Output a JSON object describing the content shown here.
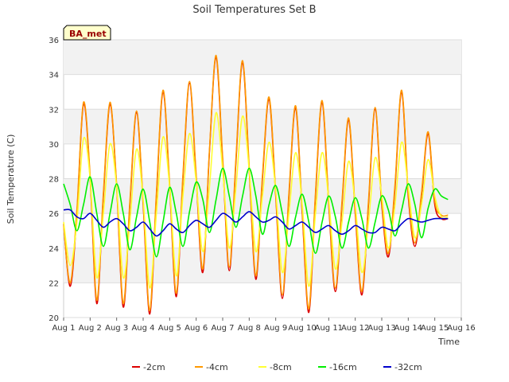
{
  "chart_data": {
    "type": "line",
    "title": "Soil Temperatures Set B",
    "xlabel": "Time",
    "ylabel": "Soil Temperature (C)",
    "ylim": [
      20,
      36
    ],
    "xlim": [
      0,
      15
    ],
    "x_tick_labels": [
      "Aug 1",
      "Aug 2",
      "Aug 3",
      "Aug 4",
      "Aug 5",
      "Aug 6",
      "Aug 7",
      "Aug 8",
      "Aug 9",
      "Aug 10",
      "Aug 11",
      "Aug 12",
      "Aug 13",
      "Aug 14",
      "Aug 15",
      "Aug 16"
    ],
    "y_ticks": [
      20,
      22,
      24,
      26,
      28,
      30,
      32,
      34,
      36
    ],
    "grid": true,
    "legend_position": "bottom",
    "station_label": "BA_met",
    "x_note": "x values in days since Aug 1 00:00",
    "series": [
      {
        "name": "-2cm",
        "color": "#dd0000",
        "x": [
          0.0,
          0.25,
          0.5,
          0.75,
          1.0,
          1.25,
          1.5,
          1.75,
          2.0,
          2.25,
          2.5,
          2.75,
          3.0,
          3.25,
          3.5,
          3.75,
          4.0,
          4.25,
          4.5,
          4.75,
          5.0,
          5.25,
          5.5,
          5.75,
          6.0,
          6.25,
          6.5,
          6.75,
          7.0,
          7.25,
          7.5,
          7.75,
          8.0,
          8.25,
          8.5,
          8.75,
          9.0,
          9.25,
          9.5,
          9.75,
          10.0,
          10.25,
          10.5,
          10.75,
          11.0,
          11.25,
          11.5,
          11.75,
          12.0,
          12.25,
          12.5,
          12.75,
          13.0,
          13.25,
          13.5,
          13.75,
          14.0,
          14.25,
          14.5
        ],
        "y": [
          25.4,
          21.8,
          26.0,
          32.3,
          28.0,
          20.8,
          27.0,
          32.3,
          27.5,
          20.6,
          26.5,
          31.8,
          26.5,
          20.2,
          27.0,
          33.0,
          27.5,
          21.2,
          28.0,
          33.5,
          28.0,
          22.6,
          29.5,
          35.0,
          29.0,
          22.7,
          29.0,
          34.7,
          28.5,
          22.2,
          28.0,
          32.6,
          27.0,
          21.1,
          27.0,
          32.1,
          26.0,
          20.3,
          27.0,
          32.4,
          26.5,
          21.5,
          26.5,
          31.4,
          26.0,
          21.3,
          26.5,
          32.0,
          26.5,
          23.5,
          27.5,
          33.0,
          27.0,
          24.1,
          27.0,
          30.6,
          26.5,
          25.7,
          25.7
        ]
      },
      {
        "name": "-4cm",
        "color": "#ff9900",
        "x": [
          0.0,
          0.25,
          0.5,
          0.75,
          1.0,
          1.25,
          1.5,
          1.75,
          2.0,
          2.25,
          2.5,
          2.75,
          3.0,
          3.25,
          3.5,
          3.75,
          4.0,
          4.25,
          4.5,
          4.75,
          5.0,
          5.25,
          5.5,
          5.75,
          6.0,
          6.25,
          6.5,
          6.75,
          7.0,
          7.25,
          7.5,
          7.75,
          8.0,
          8.25,
          8.5,
          8.75,
          9.0,
          9.25,
          9.5,
          9.75,
          10.0,
          10.25,
          10.5,
          10.75,
          11.0,
          11.25,
          11.5,
          11.75,
          12.0,
          12.25,
          12.5,
          12.75,
          13.0,
          13.25,
          13.5,
          13.75,
          14.0,
          14.25,
          14.5
        ],
        "y": [
          25.3,
          22.0,
          26.2,
          32.4,
          28.2,
          21.0,
          27.2,
          32.4,
          27.6,
          20.8,
          26.7,
          31.9,
          26.7,
          20.4,
          27.2,
          33.1,
          27.7,
          21.4,
          28.2,
          33.6,
          28.2,
          22.8,
          29.6,
          35.1,
          29.2,
          22.9,
          29.2,
          34.8,
          28.7,
          22.4,
          28.2,
          32.7,
          27.2,
          21.3,
          27.2,
          32.2,
          26.2,
          20.5,
          27.2,
          32.5,
          26.7,
          21.7,
          26.7,
          31.5,
          26.2,
          21.5,
          26.7,
          32.1,
          26.7,
          23.7,
          27.7,
          33.1,
          27.2,
          24.3,
          27.2,
          30.7,
          26.7,
          25.9,
          25.9
        ]
      },
      {
        "name": "-8cm",
        "color": "#ffff33",
        "x": [
          0.0,
          0.25,
          0.5,
          0.75,
          1.0,
          1.25,
          1.5,
          1.75,
          2.0,
          2.25,
          2.5,
          2.75,
          3.0,
          3.25,
          3.5,
          3.75,
          4.0,
          4.25,
          4.5,
          4.75,
          5.0,
          5.25,
          5.5,
          5.75,
          6.0,
          6.25,
          6.5,
          6.75,
          7.0,
          7.25,
          7.5,
          7.75,
          8.0,
          8.25,
          8.5,
          8.75,
          9.0,
          9.25,
          9.5,
          9.75,
          10.0,
          10.25,
          10.5,
          10.75,
          11.0,
          11.25,
          11.5,
          11.75,
          12.0,
          12.25,
          12.5,
          12.75,
          13.0,
          13.25,
          13.5,
          13.75,
          14.0,
          14.25,
          14.5
        ],
        "y": [
          25.5,
          23.0,
          25.5,
          30.3,
          28.0,
          22.3,
          26.0,
          30.0,
          27.5,
          22.3,
          25.5,
          29.7,
          26.8,
          21.7,
          26.0,
          30.4,
          27.5,
          22.4,
          27.0,
          30.6,
          27.8,
          23.8,
          27.5,
          31.8,
          28.5,
          24.0,
          27.5,
          31.6,
          28.5,
          23.8,
          27.0,
          30.1,
          27.3,
          22.6,
          26.0,
          29.5,
          26.5,
          21.8,
          26.0,
          29.5,
          26.8,
          22.8,
          25.5,
          29.0,
          26.5,
          22.6,
          25.5,
          29.2,
          27.0,
          24.0,
          26.5,
          30.1,
          27.5,
          24.6,
          26.5,
          29.1,
          27.0,
          25.8,
          25.8
        ]
      },
      {
        "name": "-16cm",
        "color": "#00ee00",
        "x": [
          0.0,
          0.25,
          0.5,
          0.75,
          1.0,
          1.25,
          1.5,
          1.75,
          2.0,
          2.25,
          2.5,
          2.75,
          3.0,
          3.25,
          3.5,
          3.75,
          4.0,
          4.25,
          4.5,
          4.75,
          5.0,
          5.25,
          5.5,
          5.75,
          6.0,
          6.25,
          6.5,
          6.75,
          7.0,
          7.25,
          7.5,
          7.75,
          8.0,
          8.25,
          8.5,
          8.75,
          9.0,
          9.25,
          9.5,
          9.75,
          10.0,
          10.25,
          10.5,
          10.75,
          11.0,
          11.25,
          11.5,
          11.75,
          12.0,
          12.25,
          12.5,
          12.75,
          13.0,
          13.25,
          13.5,
          13.75,
          14.0,
          14.25,
          14.5
        ],
        "y": [
          27.7,
          26.5,
          25.0,
          26.5,
          28.1,
          26.0,
          24.1,
          26.0,
          27.7,
          26.0,
          23.9,
          25.8,
          27.4,
          25.5,
          23.5,
          25.5,
          27.5,
          26.0,
          24.1,
          26.1,
          27.8,
          26.8,
          24.9,
          26.8,
          28.6,
          27.0,
          25.2,
          27.0,
          28.6,
          27.0,
          24.8,
          26.5,
          27.6,
          26.0,
          24.1,
          25.8,
          27.1,
          25.5,
          23.7,
          25.5,
          27.0,
          25.8,
          24.0,
          25.5,
          26.9,
          25.7,
          24.0,
          25.5,
          27.0,
          26.2,
          24.7,
          26.2,
          27.7,
          26.5,
          24.6,
          26.3,
          27.4,
          27.0,
          26.8
        ]
      },
      {
        "name": "-32cm",
        "color": "#0000cc",
        "x": [
          0.0,
          0.25,
          0.5,
          0.75,
          1.0,
          1.25,
          1.5,
          1.75,
          2.0,
          2.25,
          2.5,
          2.75,
          3.0,
          3.25,
          3.5,
          3.75,
          4.0,
          4.25,
          4.5,
          4.75,
          5.0,
          5.25,
          5.5,
          5.75,
          6.0,
          6.25,
          6.5,
          6.75,
          7.0,
          7.25,
          7.5,
          7.75,
          8.0,
          8.25,
          8.5,
          8.75,
          9.0,
          9.25,
          9.5,
          9.75,
          10.0,
          10.25,
          10.5,
          10.75,
          11.0,
          11.25,
          11.5,
          11.75,
          12.0,
          12.25,
          12.5,
          12.75,
          13.0,
          13.25,
          13.5,
          13.75,
          14.0,
          14.25,
          14.5
        ],
        "y": [
          26.2,
          26.2,
          25.8,
          25.7,
          26.0,
          25.6,
          25.2,
          25.5,
          25.7,
          25.4,
          25.0,
          25.2,
          25.5,
          25.1,
          24.7,
          25.0,
          25.4,
          25.1,
          24.9,
          25.3,
          25.6,
          25.4,
          25.2,
          25.6,
          26.0,
          25.8,
          25.5,
          25.8,
          26.1,
          25.8,
          25.5,
          25.6,
          25.8,
          25.5,
          25.1,
          25.3,
          25.5,
          25.2,
          24.9,
          25.1,
          25.3,
          25.0,
          24.8,
          25.0,
          25.3,
          25.1,
          24.9,
          24.9,
          25.2,
          25.1,
          25.0,
          25.4,
          25.7,
          25.6,
          25.5,
          25.6,
          25.7,
          25.7,
          25.7
        ]
      }
    ]
  }
}
